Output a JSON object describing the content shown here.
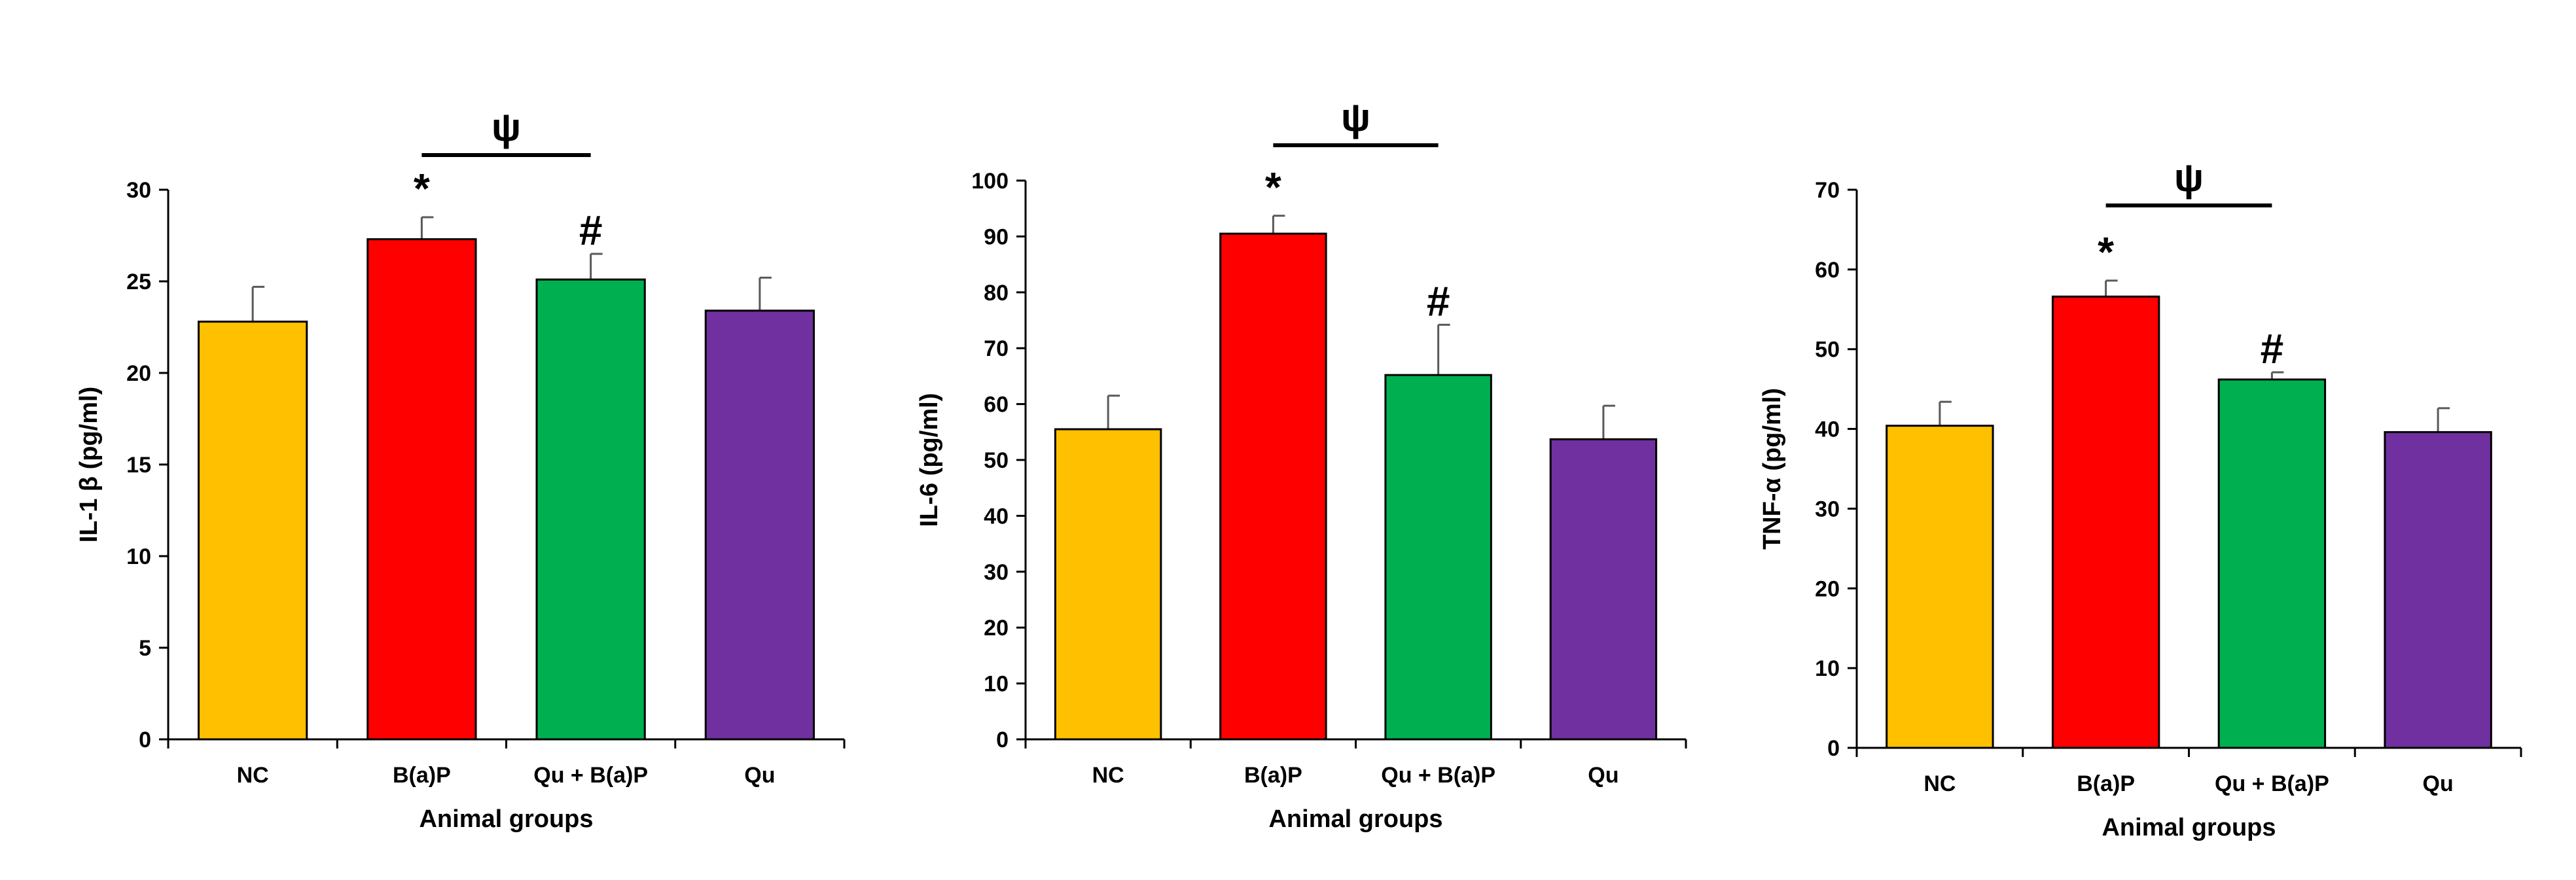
{
  "chart_data": [
    {
      "type": "bar",
      "title": "",
      "xlabel": "Animal groups",
      "ylabel": "IL-1 β (pg/ml)",
      "ylim": [
        0,
        30
      ],
      "yticks": [
        "0",
        "5",
        "10",
        "15",
        "20",
        "25",
        "30"
      ],
      "categories": [
        "NC",
        "B(a)P",
        "Qu + B(a)P",
        "Qu"
      ],
      "values": [
        22.8,
        27.3,
        25.1,
        23.4
      ],
      "errors": [
        1.9,
        1.2,
        1.4,
        1.8
      ],
      "colors": [
        "#FFC000",
        "#FF0000",
        "#00B050",
        "#7030A0"
      ],
      "markers": [
        "",
        "*",
        "#",
        ""
      ],
      "bracket": {
        "label": "ψ",
        "from": "B(a)P",
        "to": "Qu + B(a)P"
      }
    },
    {
      "type": "bar",
      "title": "",
      "xlabel": "Animal groups",
      "ylabel": "IL-6 (pg/ml)",
      "ylim": [
        0,
        100
      ],
      "yticks": [
        "0",
        "10",
        "20",
        "30",
        "40",
        "50",
        "60",
        "70",
        "80",
        "90",
        "100"
      ],
      "categories": [
        "NC",
        "B(a)P",
        "Qu + B(a)P",
        "Qu"
      ],
      "values": [
        55.5,
        90.5,
        65.2,
        53.7
      ],
      "errors": [
        6.0,
        3.2,
        9.0,
        6.0
      ],
      "colors": [
        "#FFC000",
        "#FF0000",
        "#00B050",
        "#7030A0"
      ],
      "markers": [
        "",
        "*",
        "#",
        ""
      ],
      "bracket": {
        "label": "ψ",
        "from": "B(a)P",
        "to": "Qu + B(a)P"
      }
    },
    {
      "type": "bar",
      "title": "",
      "xlabel": "Animal groups",
      "ylabel": "TNF-α (pg/ml)",
      "ylim": [
        0,
        70
      ],
      "yticks": [
        "0",
        "10",
        "20",
        "30",
        "40",
        "50",
        "60",
        "70"
      ],
      "categories": [
        "NC",
        "B(a)P",
        "Qu + B(a)P",
        "Qu"
      ],
      "values": [
        40.4,
        56.6,
        46.2,
        39.6
      ],
      "errors": [
        3.0,
        2.0,
        0.9,
        3.0
      ],
      "colors": [
        "#FFC000",
        "#FF0000",
        "#00B050",
        "#7030A0"
      ],
      "markers": [
        "",
        "*",
        "#",
        ""
      ],
      "bracket": {
        "label": "ψ",
        "from": "B(a)P",
        "to": "Qu + B(a)P"
      }
    }
  ]
}
